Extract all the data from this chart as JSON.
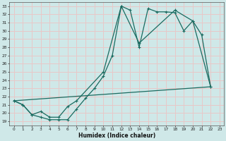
{
  "xlabel": "Humidex (Indice chaleur)",
  "bg_color": "#cfe8e8",
  "grid_color": "#e8c8c8",
  "line_color": "#1a6b60",
  "xlim": [
    -0.5,
    23.5
  ],
  "ylim": [
    18.5,
    33.5
  ],
  "xticks": [
    0,
    1,
    2,
    3,
    4,
    5,
    6,
    7,
    8,
    9,
    10,
    11,
    12,
    13,
    14,
    15,
    16,
    17,
    18,
    19,
    20,
    21,
    22,
    23
  ],
  "yticks": [
    19,
    20,
    21,
    22,
    23,
    24,
    25,
    26,
    27,
    28,
    29,
    30,
    31,
    32,
    33
  ],
  "line1_x": [
    0,
    1,
    2,
    3,
    4,
    5,
    6,
    7,
    8,
    9,
    10,
    11,
    12,
    13,
    14,
    15,
    16,
    17,
    18,
    19,
    20,
    21,
    22
  ],
  "line1_y": [
    21.5,
    21.0,
    19.8,
    19.5,
    19.2,
    19.2,
    19.2,
    20.5,
    21.8,
    23.0,
    24.5,
    27.0,
    33.0,
    32.5,
    28.0,
    32.7,
    32.3,
    32.3,
    32.2,
    30.0,
    31.2,
    29.5,
    23.2
  ],
  "line2_x": [
    0,
    1,
    2,
    3,
    4,
    5,
    6,
    7,
    10,
    12,
    14,
    18,
    20,
    22
  ],
  "line2_y": [
    21.5,
    21.0,
    19.8,
    20.2,
    19.5,
    19.5,
    20.8,
    21.5,
    25.0,
    33.0,
    28.5,
    32.5,
    31.2,
    23.2
  ],
  "line3_x": [
    0,
    22
  ],
  "line3_y": [
    21.5,
    23.2
  ]
}
